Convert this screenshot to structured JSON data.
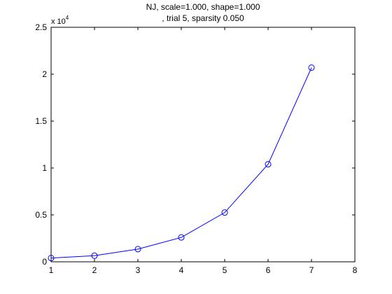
{
  "chart_data": {
    "type": "line",
    "title_lines": [
      "NJ, scale=1.000, shape=1.000",
      ", trial 5, sparsity 0.050"
    ],
    "x": [
      1,
      2,
      3,
      4,
      5,
      6,
      7
    ],
    "series": [
      {
        "values": [
          400,
          650,
          1350,
          2600,
          5250,
          10400,
          20700
        ]
      }
    ],
    "xlim": [
      1,
      8
    ],
    "ylim": [
      0,
      25000
    ],
    "xticks": [
      1,
      2,
      3,
      4,
      5,
      6,
      7,
      8
    ],
    "yticks": [
      0,
      5000,
      10000,
      15000,
      20000,
      25000
    ],
    "ytick_labels": [
      "0",
      "0.5",
      "1",
      "1.5",
      "2",
      "2.5"
    ],
    "y_exponent_base": "x 10",
    "y_exponent_power": "4",
    "grid": false,
    "marker": "circle",
    "line_color": "#0000ff"
  }
}
